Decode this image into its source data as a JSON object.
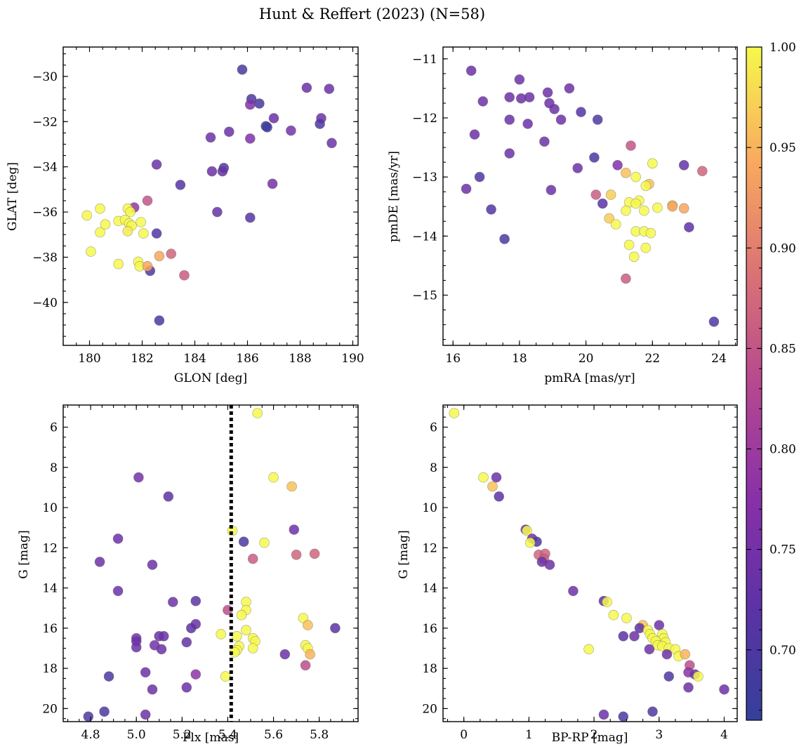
{
  "title": "Hunt & Reffert (2023) (N=58)",
  "colorbar": {
    "min": 0.665,
    "max": 1.0,
    "ticks": [
      0.7,
      0.75,
      0.8,
      0.85,
      0.9,
      0.95,
      1.0
    ],
    "tick_labels": [
      "0.70",
      "0.75",
      "0.80",
      "0.85",
      "0.90",
      "0.95",
      "1.00"
    ]
  },
  "chart_data": [
    {
      "type": "scatter",
      "name": "position",
      "xlabel": "GLON [deg]",
      "ylabel": "GLAT [deg]",
      "xlim": [
        179.0,
        190.2
      ],
      "ylim": [
        -41.9,
        -28.7
      ],
      "yinvert": false,
      "xticks": [
        180,
        182,
        184,
        186,
        188,
        190
      ],
      "xtick_labels": [
        "180",
        "182",
        "184",
        "186",
        "188",
        "190"
      ],
      "yticks": [
        -30,
        -32,
        -34,
        -36,
        -38,
        -40
      ],
      "ytick_labels": [
        "−30",
        "−32",
        "−34",
        "−36",
        "−38",
        "−40"
      ],
      "points": [
        [
          185.8,
          -29.7,
          0.69
        ],
        [
          188.25,
          -30.5,
          0.74
        ],
        [
          189.1,
          -30.55,
          0.74
        ],
        [
          186.15,
          -31.0,
          0.7
        ],
        [
          186.1,
          -31.25,
          0.77
        ],
        [
          186.45,
          -31.2,
          0.69
        ],
        [
          187.0,
          -31.85,
          0.74
        ],
        [
          188.8,
          -31.85,
          0.74
        ],
        [
          188.75,
          -32.1,
          0.7
        ],
        [
          186.7,
          -32.2,
          0.67
        ],
        [
          186.75,
          -32.25,
          0.68
        ],
        [
          185.3,
          -32.45,
          0.74
        ],
        [
          187.65,
          -32.4,
          0.75
        ],
        [
          184.6,
          -32.7,
          0.74
        ],
        [
          186.1,
          -32.75,
          0.76
        ],
        [
          189.2,
          -32.95,
          0.74
        ],
        [
          182.55,
          -33.9,
          0.74
        ],
        [
          185.1,
          -34.05,
          0.71
        ],
        [
          185.05,
          -34.2,
          0.73
        ],
        [
          184.65,
          -34.2,
          0.74
        ],
        [
          183.45,
          -34.8,
          0.71
        ],
        [
          186.95,
          -34.75,
          0.75
        ],
        [
          182.2,
          -35.5,
          0.85
        ],
        [
          184.85,
          -36.0,
          0.73
        ],
        [
          186.1,
          -36.25,
          0.71
        ],
        [
          182.55,
          -36.95,
          0.71
        ],
        [
          182.3,
          -38.6,
          0.7
        ],
        [
          182.65,
          -40.8,
          0.7
        ],
        [
          181.7,
          -35.8,
          0.79
        ],
        [
          179.9,
          -36.15,
          1.0
        ],
        [
          180.4,
          -35.85,
          1.0
        ],
        [
          181.45,
          -35.85,
          1.0
        ],
        [
          181.55,
          -36.0,
          1.0
        ],
        [
          181.1,
          -36.4,
          1.0
        ],
        [
          181.35,
          -36.35,
          1.0
        ],
        [
          181.5,
          -36.5,
          1.0
        ],
        [
          181.6,
          -36.6,
          1.0
        ],
        [
          181.95,
          -36.45,
          1.0
        ],
        [
          180.6,
          -36.55,
          1.0
        ],
        [
          181.45,
          -36.85,
          0.99
        ],
        [
          180.4,
          -36.9,
          1.0
        ],
        [
          182.05,
          -36.95,
          1.0
        ],
        [
          180.05,
          -37.75,
          1.0
        ],
        [
          182.65,
          -37.95,
          0.94
        ],
        [
          183.1,
          -37.85,
          0.87
        ],
        [
          181.1,
          -38.3,
          1.0
        ],
        [
          181.85,
          -38.2,
          1.0
        ],
        [
          181.9,
          -38.4,
          1.0
        ],
        [
          182.2,
          -38.4,
          0.94
        ],
        [
          183.6,
          -38.8,
          0.86
        ]
      ]
    },
    {
      "type": "scatter",
      "name": "proper-motion",
      "xlabel": "pmRA [mas/yr]",
      "ylabel": "pmDE [mas/yr]",
      "xlim": [
        15.7,
        24.55
      ],
      "ylim": [
        -15.85,
        -10.8
      ],
      "yinvert": false,
      "xticks": [
        16,
        18,
        20,
        22,
        24
      ],
      "xtick_labels": [
        "16",
        "18",
        "20",
        "22",
        "24"
      ],
      "yticks": [
        -11,
        -12,
        -13,
        -14,
        -15
      ],
      "ytick_labels": [
        "−11",
        "−12",
        "−13",
        "−14",
        "−15"
      ],
      "points": [
        [
          16.55,
          -11.2,
          0.74
        ],
        [
          18.0,
          -11.35,
          0.74
        ],
        [
          19.5,
          -11.5,
          0.74
        ],
        [
          17.7,
          -11.65,
          0.74
        ],
        [
          18.05,
          -11.67,
          0.74
        ],
        [
          18.3,
          -11.65,
          0.74
        ],
        [
          18.85,
          -11.57,
          0.74
        ],
        [
          16.9,
          -11.72,
          0.74
        ],
        [
          18.9,
          -11.75,
          0.74
        ],
        [
          19.05,
          -11.85,
          0.74
        ],
        [
          19.85,
          -11.9,
          0.71
        ],
        [
          17.7,
          -12.03,
          0.74
        ],
        [
          19.25,
          -12.03,
          0.74
        ],
        [
          20.35,
          -12.03,
          0.7
        ],
        [
          18.25,
          -12.1,
          0.74
        ],
        [
          16.65,
          -12.28,
          0.74
        ],
        [
          18.75,
          -12.4,
          0.74
        ],
        [
          21.35,
          -12.47,
          0.85
        ],
        [
          17.7,
          -12.6,
          0.74
        ],
        [
          20.25,
          -12.67,
          0.7
        ],
        [
          20.95,
          -12.8,
          0.77
        ],
        [
          22.95,
          -12.8,
          0.73
        ],
        [
          19.75,
          -12.85,
          0.74
        ],
        [
          23.5,
          -12.9,
          0.87
        ],
        [
          21.2,
          -12.93,
          0.96
        ],
        [
          16.8,
          -13.0,
          0.71
        ],
        [
          21.5,
          -13.0,
          1.0
        ],
        [
          22.0,
          -12.77,
          1.0
        ],
        [
          16.4,
          -13.2,
          0.74
        ],
        [
          18.95,
          -13.22,
          0.74
        ],
        [
          20.3,
          -13.3,
          0.86
        ],
        [
          20.75,
          -13.3,
          0.97
        ],
        [
          21.9,
          -13.12,
          0.96
        ],
        [
          21.8,
          -13.15,
          1.0
        ],
        [
          21.6,
          -13.4,
          1.0
        ],
        [
          21.3,
          -13.43,
          1.0
        ],
        [
          21.5,
          -13.45,
          1.0
        ],
        [
          20.5,
          -13.45,
          0.72
        ],
        [
          22.6,
          -13.48,
          0.96
        ],
        [
          22.6,
          -13.5,
          0.94
        ],
        [
          22.15,
          -13.52,
          1.0
        ],
        [
          22.95,
          -13.53,
          0.94
        ],
        [
          17.15,
          -13.55,
          0.71
        ],
        [
          21.2,
          -13.57,
          1.0
        ],
        [
          21.75,
          -13.57,
          1.0
        ],
        [
          20.7,
          -13.7,
          0.97
        ],
        [
          20.9,
          -13.8,
          1.0
        ],
        [
          23.1,
          -13.85,
          0.72
        ],
        [
          21.5,
          -13.92,
          1.0
        ],
        [
          21.75,
          -13.92,
          1.0
        ],
        [
          21.95,
          -13.95,
          1.0
        ],
        [
          17.55,
          -14.05,
          0.7
        ],
        [
          21.3,
          -14.15,
          1.0
        ],
        [
          21.8,
          -14.2,
          1.0
        ],
        [
          21.45,
          -14.35,
          1.0
        ],
        [
          21.2,
          -14.72,
          0.86
        ],
        [
          23.85,
          -15.45,
          0.71
        ]
      ]
    },
    {
      "type": "scatter",
      "name": "parallax-magnitude",
      "xlabel": "Plx [mas]",
      "ylabel": "G [mag]",
      "xlim": [
        4.68,
        5.97
      ],
      "ylim": [
        4.9,
        20.65
      ],
      "yinvert": true,
      "xticks": [
        4.8,
        5.0,
        5.2,
        5.4,
        5.6,
        5.8
      ],
      "xtick_labels": [
        "4.8",
        "5.0",
        "5.2",
        "5.4",
        "5.6",
        "5.8"
      ],
      "yticks": [
        6,
        8,
        10,
        12,
        14,
        16,
        18,
        20
      ],
      "ytick_labels": [
        "6",
        "8",
        "10",
        "12",
        "14",
        "16",
        "18",
        "20"
      ],
      "vline": 5.415,
      "points": [
        [
          5.53,
          5.3,
          1.0
        ],
        [
          5.01,
          8.5,
          0.75
        ],
        [
          5.6,
          8.5,
          1.0
        ],
        [
          5.68,
          8.95,
          0.96
        ],
        [
          5.14,
          9.45,
          0.72
        ],
        [
          5.69,
          11.1,
          0.74
        ],
        [
          5.42,
          11.15,
          1.0
        ],
        [
          4.92,
          11.55,
          0.74
        ],
        [
          5.47,
          11.7,
          0.7
        ],
        [
          5.56,
          11.75,
          1.0
        ],
        [
          5.7,
          12.35,
          0.87
        ],
        [
          5.78,
          12.3,
          0.87
        ],
        [
          5.51,
          12.55,
          0.86
        ],
        [
          4.84,
          12.7,
          0.74
        ],
        [
          5.07,
          12.85,
          0.74
        ],
        [
          4.92,
          14.15,
          0.74
        ],
        [
          5.16,
          14.7,
          0.74
        ],
        [
          5.26,
          14.65,
          0.72
        ],
        [
          5.48,
          14.7,
          1.0
        ],
        [
          5.4,
          15.1,
          0.84
        ],
        [
          5.48,
          15.1,
          1.0
        ],
        [
          5.46,
          15.35,
          1.0
        ],
        [
          5.73,
          15.5,
          1.0
        ],
        [
          5.75,
          15.85,
          0.96
        ],
        [
          5.26,
          15.8,
          0.74
        ],
        [
          5.24,
          16.0,
          0.72
        ],
        [
          5.87,
          16.0,
          0.72
        ],
        [
          5.48,
          16.1,
          1.0
        ],
        [
          5.37,
          16.3,
          1.0
        ],
        [
          5.1,
          16.4,
          0.74
        ],
        [
          5.12,
          16.4,
          0.74
        ],
        [
          5.44,
          16.4,
          1.0
        ],
        [
          5.51,
          16.5,
          1.0
        ],
        [
          5.52,
          16.65,
          1.0
        ],
        [
          5.0,
          16.5,
          0.75
        ],
        [
          5.0,
          16.65,
          0.74
        ],
        [
          5.22,
          16.7,
          0.73
        ],
        [
          5.74,
          16.85,
          1.0
        ],
        [
          5.08,
          16.85,
          0.75
        ],
        [
          5.0,
          16.95,
          0.74
        ],
        [
          5.45,
          16.9,
          1.0
        ],
        [
          5.75,
          17.0,
          1.0
        ],
        [
          5.51,
          17.0,
          1.0
        ],
        [
          5.11,
          17.05,
          0.74
        ],
        [
          5.44,
          17.1,
          1.0
        ],
        [
          5.43,
          17.2,
          1.0
        ],
        [
          5.65,
          17.3,
          0.74
        ],
        [
          5.76,
          17.3,
          0.95
        ],
        [
          5.74,
          17.85,
          0.84
        ],
        [
          5.04,
          18.2,
          0.74
        ],
        [
          5.26,
          18.3,
          0.78
        ],
        [
          4.88,
          18.4,
          0.7
        ],
        [
          5.39,
          18.4,
          1.0
        ],
        [
          5.22,
          18.95,
          0.74
        ],
        [
          5.07,
          19.05,
          0.74
        ],
        [
          4.86,
          20.15,
          0.7
        ],
        [
          5.04,
          20.3,
          0.74
        ],
        [
          4.79,
          20.4,
          0.7
        ]
      ]
    },
    {
      "type": "scatter",
      "name": "color-magnitude",
      "xlabel": "BP-RP [mag]",
      "ylabel": "G [mag]",
      "xlim": [
        -0.32,
        4.2
      ],
      "ylim": [
        4.9,
        20.65
      ],
      "yinvert": true,
      "xticks": [
        0,
        1,
        2,
        3,
        4
      ],
      "xtick_labels": [
        "0",
        "1",
        "2",
        "3",
        "4"
      ],
      "yticks": [
        6,
        8,
        10,
        12,
        14,
        16,
        18,
        20
      ],
      "ytick_labels": [
        "6",
        "8",
        "10",
        "12",
        "14",
        "16",
        "18",
        "20"
      ],
      "points": [
        [
          -0.15,
          5.3,
          1.0
        ],
        [
          0.3,
          8.5,
          1.0
        ],
        [
          0.5,
          8.5,
          0.74
        ],
        [
          0.44,
          8.95,
          0.96
        ],
        [
          0.54,
          9.45,
          0.72
        ],
        [
          0.95,
          11.1,
          0.74
        ],
        [
          0.97,
          11.15,
          1.0
        ],
        [
          1.05,
          11.55,
          0.74
        ],
        [
          1.12,
          11.7,
          0.7
        ],
        [
          1.02,
          11.75,
          1.0
        ],
        [
          1.15,
          12.35,
          0.87
        ],
        [
          1.25,
          12.3,
          0.87
        ],
        [
          1.23,
          12.55,
          0.86
        ],
        [
          1.2,
          12.7,
          0.74
        ],
        [
          1.32,
          12.85,
          0.74
        ],
        [
          1.68,
          14.15,
          0.74
        ],
        [
          2.15,
          14.65,
          0.72
        ],
        [
          2.2,
          14.7,
          1.0
        ],
        [
          2.45,
          16.4,
          0.72
        ],
        [
          2.62,
          16.4,
          0.74
        ],
        [
          2.3,
          15.35,
          1.0
        ],
        [
          2.5,
          15.5,
          1.0
        ],
        [
          2.75,
          15.85,
          0.96
        ],
        [
          2.7,
          16.0,
          0.72
        ],
        [
          2.83,
          16.1,
          1.0
        ],
        [
          3.0,
          15.85,
          0.74
        ],
        [
          2.86,
          16.3,
          1.0
        ],
        [
          3.05,
          16.3,
          1.0
        ],
        [
          2.9,
          16.5,
          1.0
        ],
        [
          3.07,
          16.5,
          1.0
        ],
        [
          2.95,
          16.65,
          1.0
        ],
        [
          3.1,
          16.7,
          1.0
        ],
        [
          2.98,
          16.85,
          1.0
        ],
        [
          3.05,
          16.9,
          1.0
        ],
        [
          2.85,
          17.05,
          0.74
        ],
        [
          3.15,
          17.0,
          1.0
        ],
        [
          3.25,
          17.05,
          1.0
        ],
        [
          1.92,
          17.05,
          1.0
        ],
        [
          3.12,
          17.3,
          0.74
        ],
        [
          3.3,
          17.4,
          1.0
        ],
        [
          3.4,
          17.3,
          0.95
        ],
        [
          3.47,
          17.85,
          0.84
        ],
        [
          3.45,
          18.2,
          0.78
        ],
        [
          3.55,
          18.3,
          0.74
        ],
        [
          3.15,
          18.4,
          0.7
        ],
        [
          3.6,
          18.4,
          1.0
        ],
        [
          3.45,
          18.95,
          0.74
        ],
        [
          4.0,
          19.05,
          0.74
        ],
        [
          2.15,
          20.3,
          0.74
        ],
        [
          2.45,
          20.4,
          0.7
        ],
        [
          2.9,
          20.15,
          0.7
        ]
      ]
    }
  ]
}
